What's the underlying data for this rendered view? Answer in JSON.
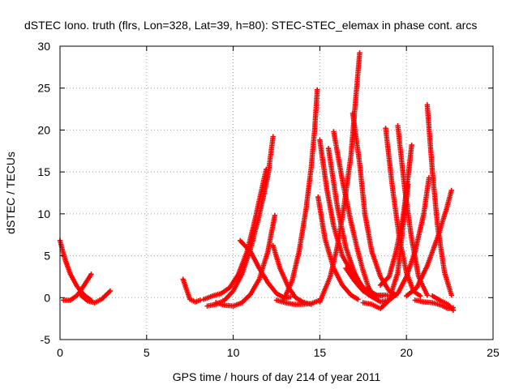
{
  "chart_data": {
    "type": "scatter",
    "title": "dSTEC Iono. truth (flrs, Lon=328, Lat=39, h=80): STEC-STEC_elemax in phase cont. arcs",
    "xlabel": "GPS time / hours of day 214 of year 2011",
    "ylabel": "dSTEC  / TECUs",
    "xlim": [
      0,
      25
    ],
    "ylim": [
      -5,
      30
    ],
    "xticks": [
      0,
      5,
      10,
      15,
      20,
      25
    ],
    "yticks": [
      -5,
      0,
      5,
      10,
      15,
      20,
      25,
      30
    ],
    "grid": true,
    "legend": "none",
    "marker": "plus",
    "color": "#ff0000",
    "series": [
      {
        "x": [
          0.0,
          0.3,
          0.6,
          1.0,
          1.4,
          1.8
        ],
        "y": [
          6.8,
          4.5,
          2.8,
          1.3,
          0.3,
          -0.3
        ]
      },
      {
        "x": [
          0.2,
          0.6,
          1.0,
          1.4,
          1.8
        ],
        "y": [
          -0.3,
          -0.3,
          0.3,
          1.5,
          2.8
        ]
      },
      {
        "x": [
          1.2,
          1.6,
          2.0,
          2.4,
          2.9
        ],
        "y": [
          0.3,
          -0.4,
          -0.6,
          -0.2,
          0.8
        ]
      },
      {
        "x": [
          7.1,
          7.3,
          7.5,
          7.8,
          8.1
        ],
        "y": [
          2.2,
          1.0,
          -0.2,
          -0.5,
          -0.3
        ]
      },
      {
        "x": [
          8.5,
          9.0,
          9.5,
          10.0,
          10.5,
          11.0,
          11.5,
          12.0,
          12.3
        ],
        "y": [
          -1.0,
          -0.8,
          -0.3,
          0.8,
          2.8,
          5.8,
          9.8,
          14.5,
          19.2
        ]
      },
      {
        "x": [
          8.3,
          8.8,
          9.3,
          9.8,
          10.3,
          10.8,
          11.2,
          11.6,
          11.9
        ],
        "y": [
          -0.2,
          0.2,
          0.5,
          1.2,
          2.8,
          5.5,
          8.8,
          12.5,
          15.3
        ]
      },
      {
        "x": [
          9.0,
          9.5,
          10.0,
          10.5,
          11.0,
          11.5,
          12.0,
          12.4
        ],
        "y": [
          -0.6,
          -0.9,
          -1.0,
          -0.6,
          0.4,
          2.2,
          5.5,
          9.8
        ]
      },
      {
        "x": [
          10.4,
          11.0,
          11.5,
          12.0,
          12.5,
          13.0,
          13.3
        ],
        "y": [
          6.8,
          5.5,
          3.5,
          1.8,
          0.5,
          -0.1,
          0.1
        ]
      },
      {
        "x": [
          12.3,
          12.7,
          13.2,
          13.6,
          14.0,
          14.5
        ],
        "y": [
          6.2,
          3.5,
          1.2,
          0.0,
          -0.5,
          -0.8
        ]
      },
      {
        "x": [
          12.5,
          13.0,
          13.5,
          14.0,
          14.5,
          15.0
        ],
        "y": [
          -0.3,
          -0.6,
          -0.8,
          -0.8,
          -0.7,
          -0.3
        ]
      },
      {
        "x": [
          12.9,
          13.4,
          13.8,
          14.2,
          14.5,
          14.7,
          14.85
        ],
        "y": [
          -0.3,
          2.0,
          5.5,
          10.5,
          15.5,
          20.0,
          24.8
        ]
      },
      {
        "x": [
          14.9,
          15.3,
          15.8,
          16.3,
          16.8,
          17.2
        ],
        "y": [
          12.0,
          7.0,
          3.5,
          1.5,
          0.3,
          -0.2
        ]
      },
      {
        "x": [
          15.0,
          15.4,
          15.8,
          16.3,
          16.9,
          17.6,
          18.3,
          18.9
        ],
        "y": [
          18.8,
          13.0,
          8.5,
          5.0,
          2.8,
          1.0,
          0.3,
          0.3
        ]
      },
      {
        "x": [
          15.5,
          16.0,
          16.5,
          17.0,
          17.5,
          18.0,
          18.6
        ],
        "y": [
          17.8,
          11.0,
          6.0,
          3.0,
          1.0,
          0.2,
          0.2
        ]
      },
      {
        "x": [
          15.8,
          16.3,
          16.8,
          17.2,
          17.5,
          17.8,
          18.1
        ],
        "y": [
          19.8,
          14.0,
          9.0,
          5.5,
          3.2,
          1.3,
          0.2
        ]
      },
      {
        "x": [
          15.0,
          15.6,
          16.0,
          16.4,
          16.8,
          17.0,
          17.3
        ],
        "y": [
          -0.5,
          2.5,
          6.0,
          11.0,
          17.0,
          22.0,
          29.2
        ]
      },
      {
        "x": [
          16.5,
          17.0,
          17.5,
          18.0,
          18.5,
          19.0,
          19.5,
          20.0,
          20.5,
          21.0,
          21.3
        ],
        "y": [
          3.5,
          2.0,
          0.8,
          0.1,
          -0.5,
          -0.3,
          0.5,
          2.5,
          5.5,
          10.0,
          14.3
        ]
      },
      {
        "x": [
          16.9,
          17.3,
          17.6,
          18.0,
          18.5,
          19.0,
          19.4
        ],
        "y": [
          22.0,
          16.0,
          10.0,
          5.5,
          2.5,
          0.8,
          0.3
        ]
      },
      {
        "x": [
          17.5,
          18.0,
          18.5,
          19.0,
          19.5,
          19.8,
          20.1
        ],
        "y": [
          -0.6,
          -0.8,
          -1.3,
          -0.3,
          3.0,
          8.5,
          13.5
        ]
      },
      {
        "x": [
          18.8,
          19.2,
          19.6,
          20.0,
          20.4,
          20.8
        ],
        "y": [
          20.2,
          13.0,
          7.0,
          3.0,
          0.8,
          0.2
        ]
      },
      {
        "x": [
          19.5,
          19.9,
          20.3,
          20.7,
          21.2
        ],
        "y": [
          20.5,
          13.0,
          7.0,
          2.5,
          0.3
        ]
      },
      {
        "x": [
          18.5,
          19.0,
          19.4,
          19.8,
          20.1,
          20.3
        ],
        "y": [
          1.5,
          2.5,
          5.5,
          9.5,
          14.5,
          18.2
        ]
      },
      {
        "x": [
          21.2,
          21.5,
          21.8,
          22.2,
          22.6
        ],
        "y": [
          23.0,
          15.0,
          8.5,
          3.0,
          0.3
        ]
      },
      {
        "x": [
          20.5,
          21.0,
          21.5,
          22.0,
          22.4,
          22.7
        ],
        "y": [
          -0.3,
          -0.5,
          -0.6,
          -0.9,
          -1.3,
          -1.2
        ]
      },
      {
        "x": [
          20.0,
          20.6,
          21.2,
          21.8,
          22.3,
          22.6
        ],
        "y": [
          0.2,
          1.2,
          3.8,
          7.2,
          10.5,
          12.8
        ]
      },
      {
        "x": [
          21.5,
          22.0,
          22.4,
          22.7
        ],
        "y": [
          0.2,
          -0.4,
          -0.8,
          -1.5
        ]
      }
    ]
  }
}
